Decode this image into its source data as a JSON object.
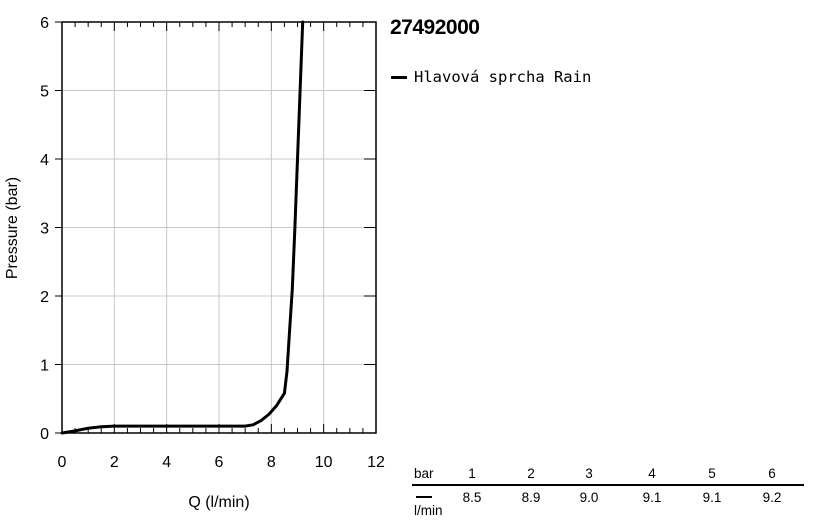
{
  "product": {
    "title": "27492000"
  },
  "chart_data": {
    "type": "line",
    "xlabel": "Q (l/min)",
    "ylabel": "Pressure (bar)",
    "xlim": [
      0,
      12
    ],
    "ylim": [
      0,
      6
    ],
    "x_ticks": [
      0,
      2,
      4,
      6,
      8,
      10,
      12
    ],
    "y_ticks": [
      0,
      1,
      2,
      3,
      4,
      5,
      6
    ],
    "grid": true,
    "legend_position": "right",
    "series": [
      {
        "name": "Hlavová sprcha Rain",
        "color": "#000000",
        "x": [
          0,
          0.5,
          1.0,
          1.5,
          2.0,
          3.0,
          4.0,
          5.0,
          6.0,
          7.0,
          7.3,
          7.6,
          7.9,
          8.2,
          8.5,
          8.6,
          8.7,
          8.8,
          8.9,
          8.95,
          9.0,
          9.05,
          9.1,
          9.2
        ],
        "y": [
          0,
          0.03,
          0.07,
          0.09,
          0.1,
          0.1,
          0.1,
          0.1,
          0.1,
          0.1,
          0.12,
          0.18,
          0.27,
          0.4,
          0.58,
          0.9,
          1.5,
          2.1,
          3.0,
          3.5,
          4.0,
          4.5,
          5.0,
          6.0
        ]
      }
    ]
  },
  "flow_table": {
    "row1_label": "bar",
    "row2_label": "l/min",
    "columns": [
      {
        "bar": "1",
        "flow": "8.5"
      },
      {
        "bar": "2",
        "flow": "8.9"
      },
      {
        "bar": "3",
        "flow": "9.0"
      },
      {
        "bar": "4",
        "flow": "9.1"
      },
      {
        "bar": "5",
        "flow": "9.1"
      },
      {
        "bar": "6",
        "flow": "9.2"
      }
    ]
  }
}
